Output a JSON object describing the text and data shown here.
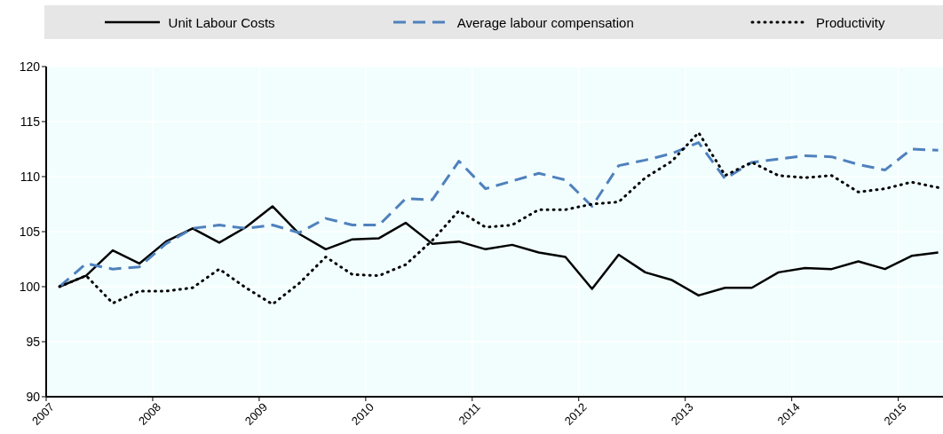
{
  "chart_data": {
    "type": "line",
    "x": [
      2007.125,
      2007.375,
      2007.625,
      2007.875,
      2008.125,
      2008.375,
      2008.625,
      2008.875,
      2009.125,
      2009.375,
      2009.625,
      2009.875,
      2010.125,
      2010.375,
      2010.625,
      2010.875,
      2011.125,
      2011.375,
      2011.625,
      2011.875,
      2012.125,
      2012.375,
      2012.625,
      2012.875,
      2013.125,
      2013.375,
      2013.625,
      2013.875,
      2014.125,
      2014.375,
      2014.625,
      2014.875,
      2015.125,
      2015.375
    ],
    "series": [
      {
        "name": "Unit Labour Costs",
        "color": "#000000",
        "line_style": "solid",
        "values": [
          100,
          101.0,
          103.3,
          102.1,
          104.1,
          105.3,
          104.0,
          105.4,
          107.3,
          104.8,
          103.4,
          104.3,
          104.4,
          105.8,
          103.9,
          104.1,
          103.4,
          103.8,
          103.1,
          102.7,
          99.8,
          102.9,
          101.3,
          100.6,
          99.2,
          99.9,
          99.9,
          101.3,
          101.7,
          101.6,
          102.3,
          101.6,
          102.8,
          103.1
        ]
      },
      {
        "name": "Average labour compensation",
        "color": "#4f81bd",
        "line_style": "dashed",
        "values": [
          100,
          102.1,
          101.6,
          101.8,
          103.9,
          105.3,
          105.6,
          105.3,
          105.6,
          104.9,
          106.2,
          105.6,
          105.6,
          108.0,
          107.9,
          111.4,
          108.9,
          109.6,
          110.3,
          109.7,
          107.3,
          111.0,
          111.5,
          112.1,
          113.1,
          109.8,
          111.3,
          111.6,
          111.9,
          111.8,
          111.1,
          110.6,
          112.5,
          112.4
        ]
      },
      {
        "name": "Productivity",
        "color": "#000000",
        "line_style": "dotted",
        "values": [
          100,
          101.0,
          98.5,
          99.6,
          99.6,
          99.9,
          101.6,
          99.9,
          98.4,
          100.3,
          102.7,
          101.1,
          101.0,
          102.0,
          104.2,
          106.9,
          105.4,
          105.6,
          107.0,
          107.0,
          107.5,
          107.7,
          109.9,
          111.4,
          114.0,
          110.1,
          111.3,
          110.1,
          109.9,
          110.1,
          108.6,
          108.9,
          109.5,
          109.0
        ]
      }
    ],
    "xlim": [
      2007,
      2015.42
    ],
    "xticks": [
      2007,
      2008,
      2009,
      2010,
      2011,
      2012,
      2013,
      2014,
      2015
    ],
    "ylim": [
      90,
      120
    ],
    "yticks": [
      90,
      95,
      100,
      105,
      110,
      115,
      120
    ],
    "grid": true,
    "legend": "top",
    "marker": "none"
  }
}
